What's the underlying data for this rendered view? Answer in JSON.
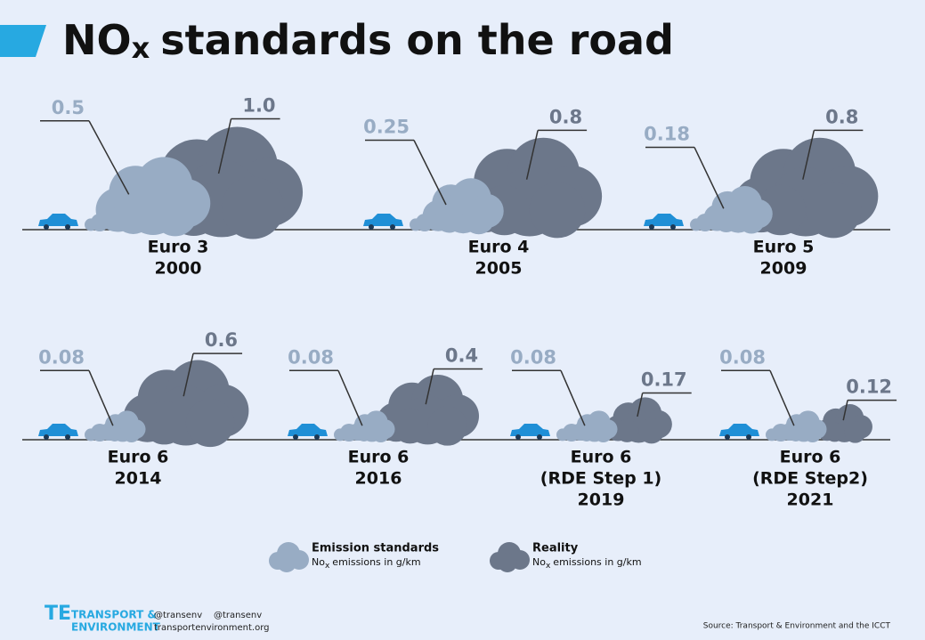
{
  "title": {
    "main": "NO",
    "sub": "x",
    "rest": "standards on the road"
  },
  "panels": [
    {
      "label": "Euro 3",
      "year": "2000",
      "standard": "0.5",
      "reality": "1.0"
    },
    {
      "label": "Euro 4",
      "year": "2005",
      "standard": "0.25",
      "reality": "0.8"
    },
    {
      "label": "Euro 5",
      "year": "2009",
      "standard": "0.18",
      "reality": "0.8"
    },
    {
      "label": "Euro 6",
      "year": "2014",
      "standard": "0.08",
      "reality": "0.6"
    },
    {
      "label": "Euro 6",
      "year": "2016",
      "standard": "0.08",
      "reality": "0.4"
    },
    {
      "label": "Euro 6",
      "sublabel": "(RDE Step 1)",
      "year": "2019",
      "standard": "0.08",
      "reality": "0.17"
    },
    {
      "label": "Euro 6",
      "sublabel": "(RDE Step2)",
      "year": "2021",
      "standard": "0.08",
      "reality": "0.12"
    }
  ],
  "legend": [
    {
      "name": "Emission standards",
      "unit": {
        "pre": "No",
        "sub": "x",
        "post": "emissions in g/km"
      }
    },
    {
      "name": "Reality",
      "unit": {
        "pre": "No",
        "sub": "x",
        "post": "emissions in g/km"
      }
    }
  ],
  "footer": {
    "org_line1": "TRANSPORT &",
    "org_line2": "ENVIRONMENT",
    "twitter": "@transenv",
    "facebook": "@transenv",
    "website": "transportenvironment.org",
    "source": "Source: Transport & Environment and the ICCT"
  }
}
